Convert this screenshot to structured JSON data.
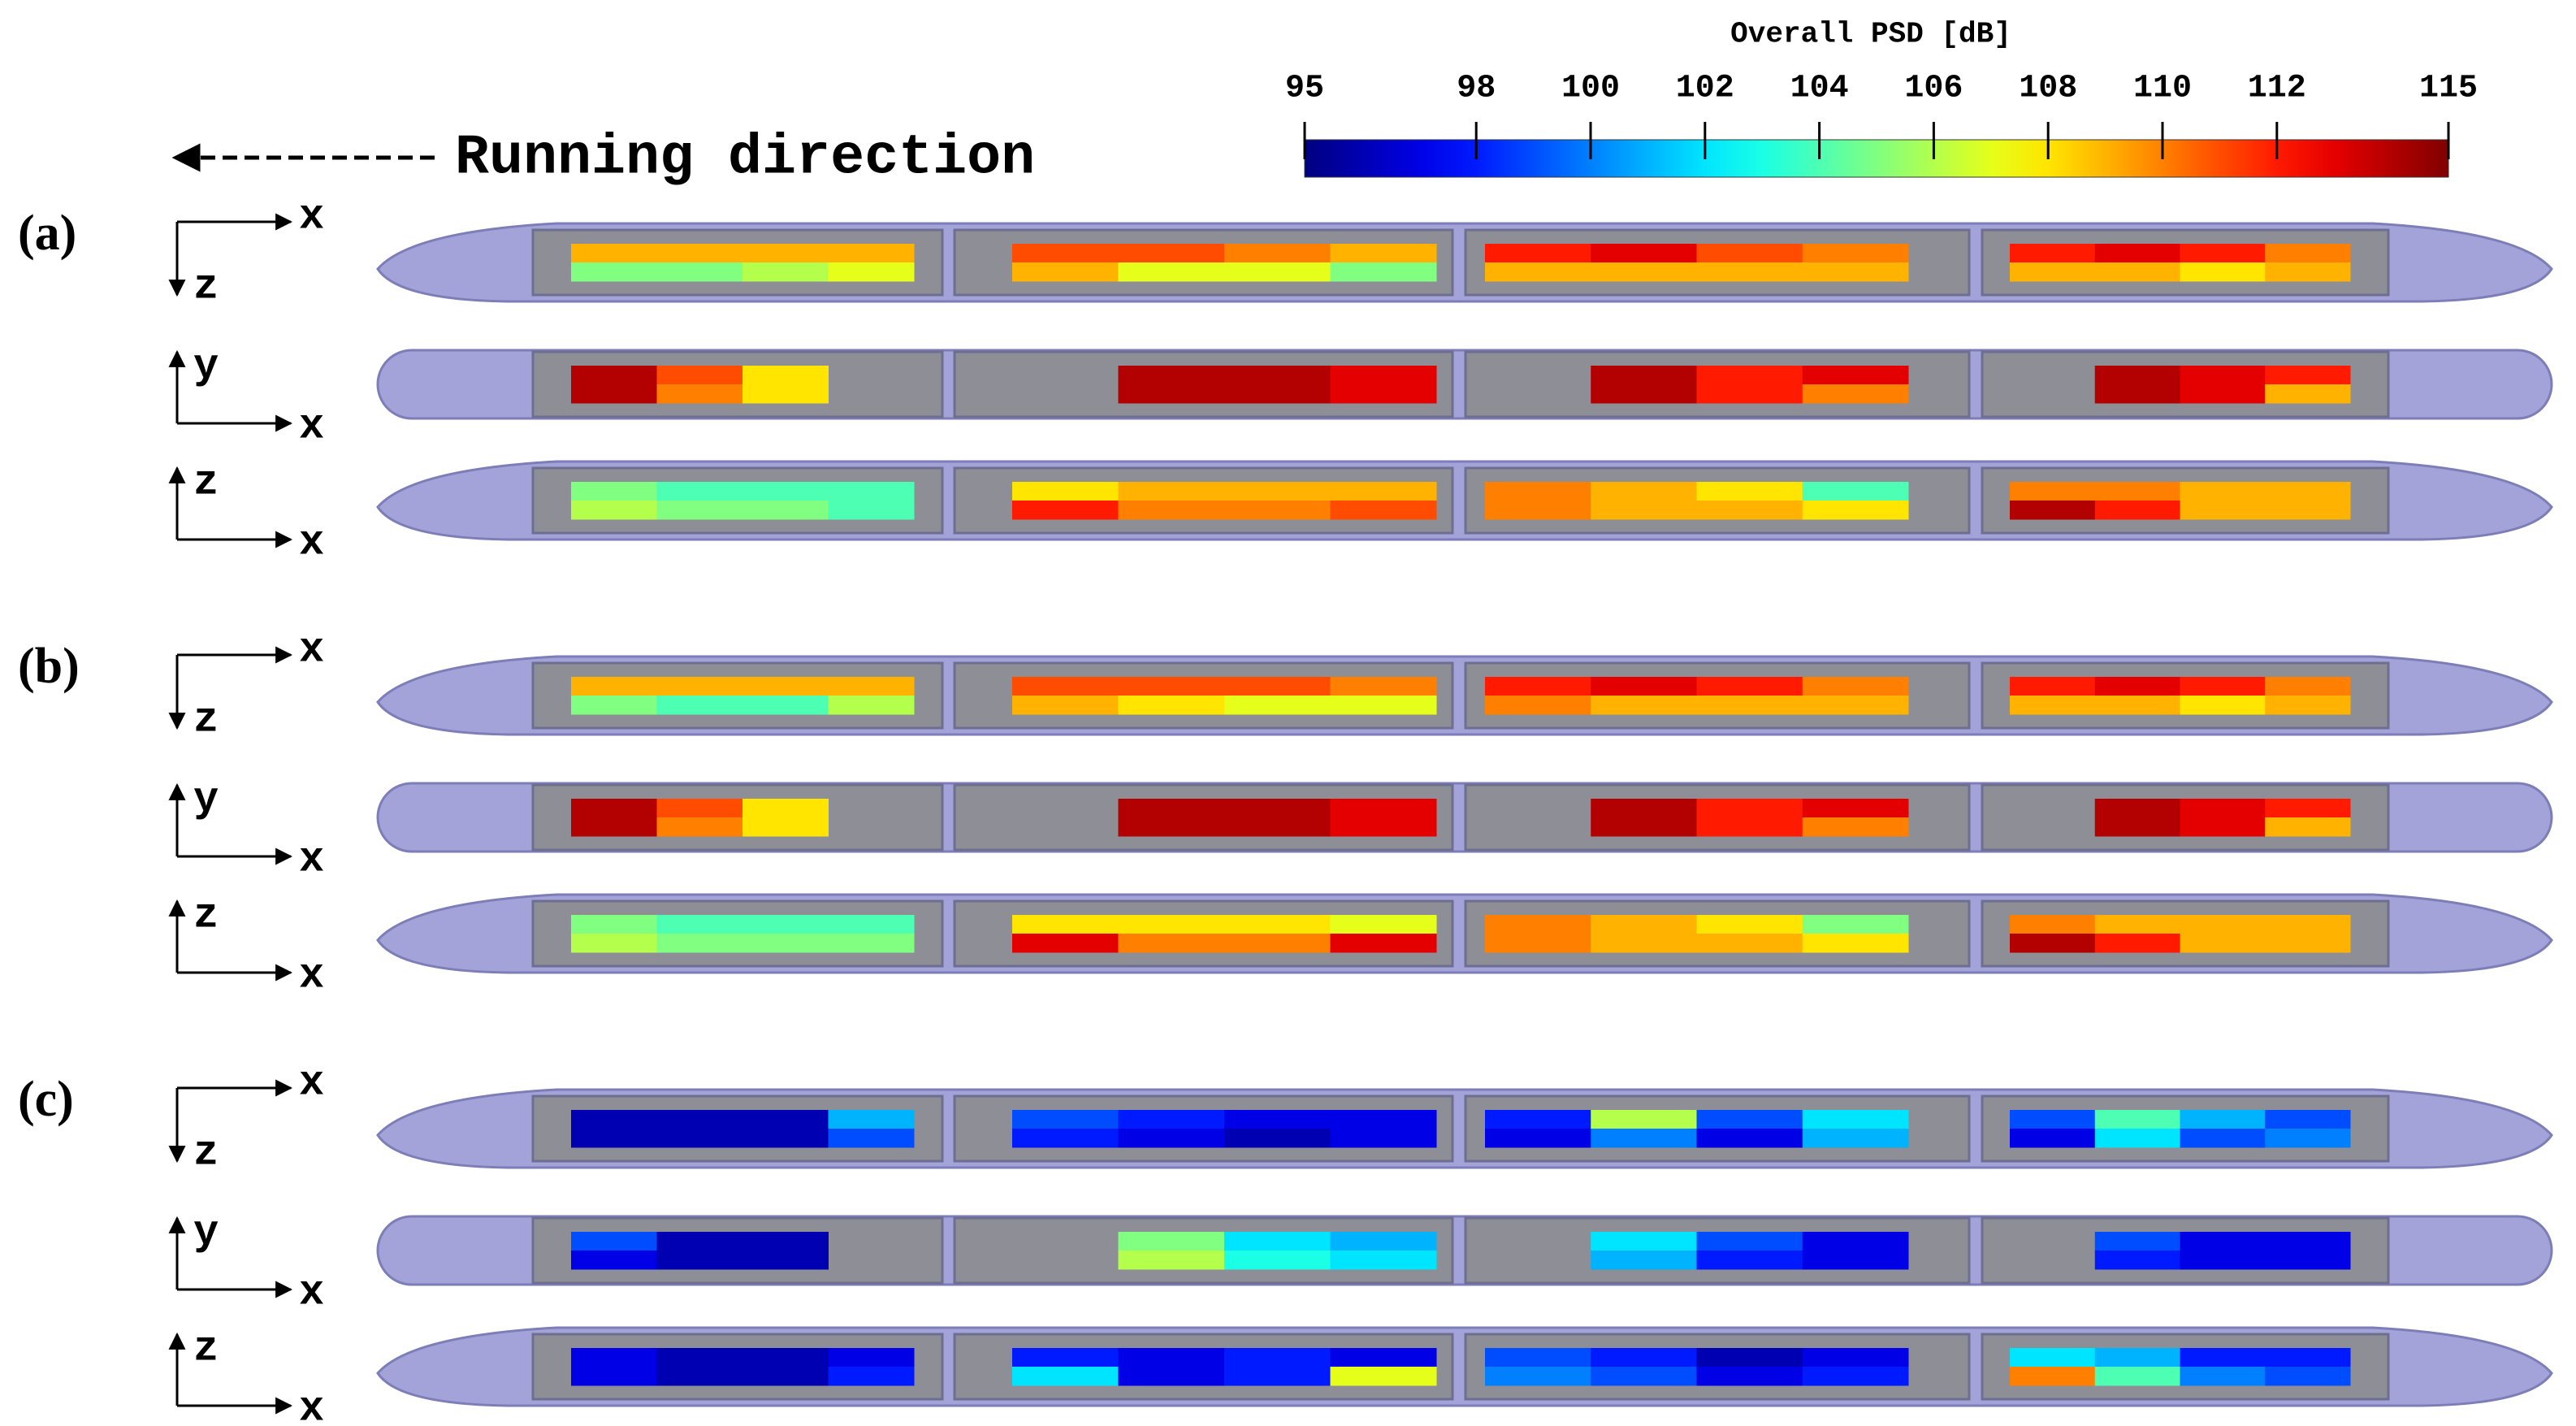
{
  "chart_data": {
    "type": "heatmap",
    "title": "Overall PSD [dB]",
    "colormap": "jet",
    "clim": [
      95,
      115
    ],
    "ticks": [
      95,
      98,
      100,
      102,
      104,
      106,
      108,
      110,
      112,
      115
    ],
    "annotation": "Running direction",
    "panels": [
      {
        "label": "(a)",
        "views": [
          {
            "horizontal": "x",
            "vertical": "z",
            "cars": [
              [
                [
                  109,
                  109,
                  109,
                  109
                ],
                [
                  105,
                  105,
                  106,
                  107
                ]
              ],
              [
                [
                  111,
                  111,
                  110,
                  109
                ],
                [
                  109,
                  107,
                  107,
                  105
                ]
              ],
              [
                [
                  112,
                  113,
                  111,
                  110
                ],
                [
                  109,
                  109,
                  109,
                  109
                ]
              ],
              [
                [
                  112,
                  113,
                  112,
                  110
                ],
                [
                  109,
                  109,
                  108,
                  109
                ]
              ]
            ]
          },
          {
            "horizontal": "x",
            "vertical": "y",
            "cars": [
              [
                [
                  114,
                  111,
                  108,
                  null
                ],
                [
                  114,
                  110,
                  108,
                  null
                ]
              ],
              [
                [
                  null,
                  114,
                  114,
                  113
                ],
                [
                  null,
                  114,
                  114,
                  113
                ]
              ],
              [
                [
                  null,
                  114,
                  112,
                  113
                ],
                [
                  null,
                  114,
                  112,
                  110
                ]
              ],
              [
                [
                  null,
                  114,
                  113,
                  112
                ],
                [
                  null,
                  114,
                  113,
                  109
                ]
              ]
            ]
          },
          {
            "horizontal": "x",
            "vertical": "z",
            "cars": [
              [
                [
                  105,
                  104,
                  104,
                  104
                ],
                [
                  106,
                  105,
                  105,
                  104
                ]
              ],
              [
                [
                  108,
                  109,
                  109,
                  109
                ],
                [
                  112,
                  110,
                  110,
                  111
                ]
              ],
              [
                [
                  110,
                  109,
                  108,
                  104
                ],
                [
                  110,
                  109,
                  109,
                  108
                ]
              ],
              [
                [
                  110,
                  110,
                  109,
                  109
                ],
                [
                  114,
                  112,
                  109,
                  109
                ]
              ]
            ]
          }
        ]
      },
      {
        "label": "(b)",
        "views": [
          {
            "horizontal": "x",
            "vertical": "z",
            "cars": [
              [
                [
                  109,
                  109,
                  109,
                  109
                ],
                [
                  105,
                  104,
                  104,
                  106
                ]
              ],
              [
                [
                  111,
                  111,
                  111,
                  110
                ],
                [
                  109,
                  108,
                  107,
                  107
                ]
              ],
              [
                [
                  112,
                  113,
                  112,
                  110
                ],
                [
                  110,
                  109,
                  109,
                  109
                ]
              ],
              [
                [
                  112,
                  113,
                  112,
                  110
                ],
                [
                  109,
                  109,
                  108,
                  109
                ]
              ]
            ]
          },
          {
            "horizontal": "x",
            "vertical": "y",
            "cars": [
              [
                [
                  114,
                  111,
                  108,
                  null
                ],
                [
                  114,
                  110,
                  108,
                  null
                ]
              ],
              [
                [
                  null,
                  114,
                  114,
                  113
                ],
                [
                  null,
                  114,
                  114,
                  113
                ]
              ],
              [
                [
                  null,
                  114,
                  112,
                  113
                ],
                [
                  null,
                  114,
                  112,
                  110
                ]
              ],
              [
                [
                  null,
                  114,
                  113,
                  112
                ],
                [
                  null,
                  114,
                  113,
                  109
                ]
              ]
            ]
          },
          {
            "horizontal": "x",
            "vertical": "z",
            "cars": [
              [
                [
                  105,
                  104,
                  104,
                  104
                ],
                [
                  106,
                  105,
                  105,
                  105
                ]
              ],
              [
                [
                  108,
                  108,
                  108,
                  107
                ],
                [
                  113,
                  110,
                  110,
                  113
                ]
              ],
              [
                [
                  110,
                  109,
                  108,
                  105
                ],
                [
                  110,
                  109,
                  109,
                  108
                ]
              ],
              [
                [
                  110,
                  109,
                  109,
                  109
                ],
                [
                  114,
                  112,
                  109,
                  109
                ]
              ]
            ]
          }
        ]
      },
      {
        "label": "(c)",
        "views": [
          {
            "horizontal": "x",
            "vertical": "z",
            "cars": [
              [
                [
                  96,
                  96,
                  96,
                  101
                ],
                [
                  96,
                  96,
                  96,
                  99
                ]
              ],
              [
                [
                  99,
                  98,
                  97,
                  97
                ],
                [
                  98,
                  97,
                  96,
                  97
                ]
              ],
              [
                [
                  98,
                  106,
                  99,
                  102
                ],
                [
                  97,
                  100,
                  97,
                  101
                ]
              ],
              [
                [
                  99,
                  104,
                  101,
                  99
                ],
                [
                  97,
                  102,
                  99,
                  100
                ]
              ]
            ]
          },
          {
            "horizontal": "x",
            "vertical": "y",
            "cars": [
              [
                [
                  99,
                  96,
                  96,
                  null
                ],
                [
                  97,
                  96,
                  96,
                  null
                ]
              ],
              [
                [
                  null,
                  105,
                  102,
                  101
                ],
                [
                  null,
                  106,
                  103,
                  102
                ]
              ],
              [
                [
                  null,
                  102,
                  99,
                  97
                ],
                [
                  null,
                  101,
                  98,
                  97
                ]
              ],
              [
                [
                  null,
                  99,
                  97,
                  97
                ],
                [
                  null,
                  98,
                  97,
                  97
                ]
              ]
            ]
          },
          {
            "horizontal": "x",
            "vertical": "z",
            "cars": [
              [
                [
                  97,
                  96,
                  96,
                  97
                ],
                [
                  97,
                  96,
                  96,
                  98
                ]
              ],
              [
                [
                  98,
                  97,
                  98,
                  97
                ],
                [
                  102,
                  97,
                  98,
                  107
                ]
              ],
              [
                [
                  99,
                  98,
                  96,
                  97
                ],
                [
                  100,
                  99,
                  97,
                  98
                ]
              ],
              [
                [
                  102,
                  101,
                  98,
                  98
                ],
                [
                  110,
                  104,
                  100,
                  99
                ]
              ]
            ]
          }
        ]
      }
    ]
  }
}
